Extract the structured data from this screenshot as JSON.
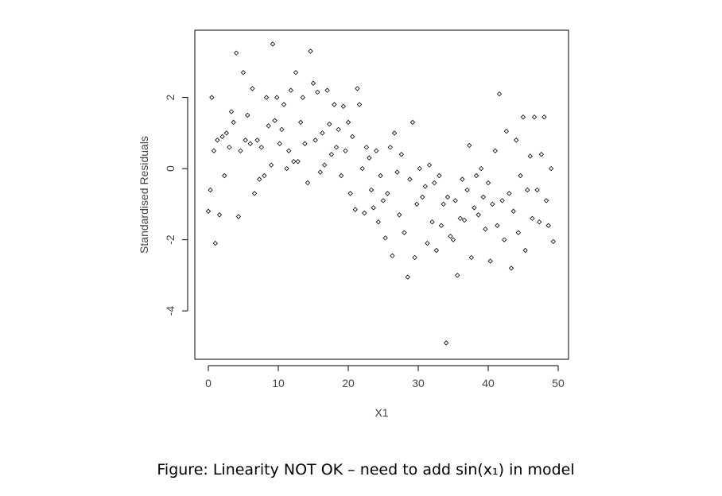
{
  "chart_data": {
    "type": "scatter",
    "x_label": "X1",
    "y_label": "Standardised Residuals",
    "caption": "Figure: Linearity NOT OK – need to add sin(x₁) in model",
    "xlim": [
      -1.93,
      51.48
    ],
    "ylim": [
      -5.36,
      3.89
    ],
    "xticks": [
      0,
      10,
      20,
      30,
      40,
      50
    ],
    "yticks": [
      -4,
      -2,
      0,
      2
    ],
    "color": "#000000",
    "x": [
      0,
      0.3,
      0.5,
      0.8,
      1,
      1.3,
      1.6,
      2,
      2.3,
      2.6,
      3,
      3.3,
      3.6,
      4,
      4.3,
      4.6,
      5,
      5.3,
      5.6,
      6,
      6.3,
      6.6,
      7,
      7.3,
      7.6,
      8,
      8.3,
      8.6,
      9,
      9.2,
      9.5,
      9.8,
      10.2,
      10.5,
      10.8,
      11.2,
      11.5,
      11.8,
      12.2,
      12.5,
      12.8,
      13.2,
      13.5,
      13.8,
      14.2,
      14.6,
      15,
      15.3,
      15.6,
      16,
      16.3,
      16.6,
      17,
      17.3,
      17.6,
      18,
      18.3,
      18.6,
      19,
      19.3,
      19.6,
      20,
      20.3,
      20.6,
      21,
      21.3,
      21.6,
      22,
      22.3,
      22.6,
      23,
      23.3,
      23.6,
      24,
      24.3,
      24.6,
      25,
      25.3,
      25.6,
      26,
      26.3,
      26.6,
      27,
      27.3,
      27.6,
      28,
      28.5,
      28.8,
      29.2,
      29.5,
      29.8,
      30.2,
      30.6,
      31,
      31.3,
      31.6,
      32,
      32.3,
      32.6,
      33,
      33.3,
      33.6,
      34,
      34.2,
      34.6,
      35,
      35.3,
      35.6,
      36,
      36.3,
      36.6,
      37,
      37.3,
      37.6,
      38,
      38.3,
      38.6,
      39,
      39.3,
      39.6,
      40,
      40.3,
      40.6,
      41,
      41.3,
      41.6,
      42,
      42.3,
      42.6,
      43,
      43.3,
      43.6,
      44,
      44.3,
      44.6,
      45,
      45.3,
      45.6,
      46,
      46.3,
      46.6,
      47,
      47.3,
      47.6,
      48,
      48.3,
      48.6,
      49,
      49.3
    ],
    "values": [
      -1.2,
      -0.6,
      2.0,
      0.5,
      -2.1,
      0.8,
      -1.3,
      0.9,
      -0.2,
      1.0,
      0.6,
      1.6,
      1.3,
      3.25,
      -1.35,
      0.5,
      2.7,
      0.8,
      1.5,
      0.7,
      2.25,
      -0.7,
      0.8,
      -0.3,
      0.6,
      -0.2,
      2.0,
      1.2,
      0.1,
      3.5,
      1.35,
      2.0,
      0.7,
      1.1,
      1.8,
      0.0,
      0.5,
      2.2,
      0.2,
      2.7,
      0.2,
      1.3,
      2.0,
      0.7,
      -0.4,
      3.3,
      2.4,
      0.8,
      2.15,
      -0.1,
      1.0,
      0.1,
      2.2,
      1.25,
      0.4,
      1.8,
      0.6,
      1.1,
      -0.2,
      1.75,
      0.5,
      1.3,
      -0.7,
      0.9,
      -1.15,
      2.25,
      1.8,
      0.0,
      -1.25,
      0.6,
      0.3,
      -0.6,
      -1.1,
      0.5,
      -1.5,
      -0.2,
      -0.9,
      -1.95,
      -0.7,
      0.6,
      -2.45,
      1.0,
      -0.1,
      -1.3,
      0.4,
      -1.8,
      -3.05,
      -0.3,
      1.3,
      -2.5,
      -1.0,
      0.0,
      -0.8,
      -0.5,
      -2.1,
      0.1,
      -1.5,
      -0.4,
      -2.3,
      -0.2,
      -1.6,
      -1.0,
      -4.9,
      -0.8,
      -1.9,
      -2.0,
      -0.9,
      -3.0,
      -1.4,
      -0.3,
      -1.45,
      -0.6,
      0.65,
      -2.5,
      -1.1,
      -0.2,
      -1.3,
      0.0,
      -0.8,
      -1.7,
      -0.4,
      -2.6,
      -1.0,
      0.5,
      -1.6,
      2.1,
      -0.9,
      -2.0,
      1.05,
      -0.7,
      -2.8,
      -1.2,
      0.8,
      -1.8,
      -0.2,
      1.45,
      -2.3,
      -0.6,
      0.35,
      -1.4,
      1.45,
      -0.6,
      -1.5,
      0.4,
      1.45,
      -0.9,
      -1.6,
      0.0,
      -2.05
    ]
  }
}
